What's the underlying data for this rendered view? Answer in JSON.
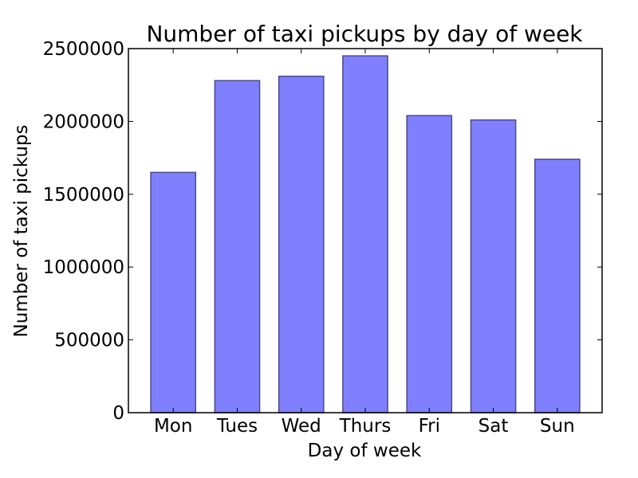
{
  "chart_data": {
    "type": "bar",
    "title": "Number of taxi pickups by day of week",
    "xlabel": "Day of week",
    "ylabel": "Number of taxi pickups",
    "categories": [
      "Mon",
      "Tues",
      "Wed",
      "Thurs",
      "Fri",
      "Sat",
      "Sun"
    ],
    "values": [
      1650000,
      2280000,
      2310000,
      2450000,
      2040000,
      2010000,
      1740000
    ],
    "ylim": [
      0,
      2500000
    ],
    "yticks": [
      0,
      500000,
      1000000,
      1500000,
      2000000,
      2500000
    ],
    "ytick_labels": [
      "0",
      "500000",
      "1000000",
      "1500000",
      "2000000",
      "2500000"
    ],
    "grid": false,
    "bar_color": "#8080ff",
    "bar_edge_color": "#4a4a8c"
  }
}
